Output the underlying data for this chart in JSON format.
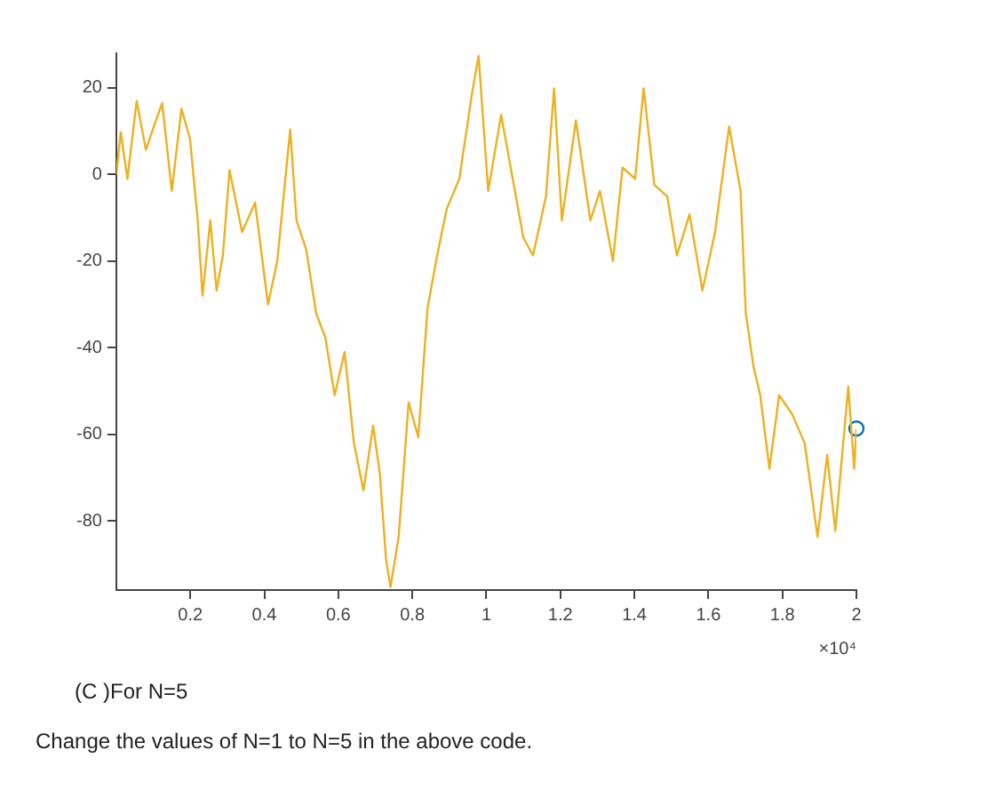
{
  "chart_data": {
    "type": "line",
    "xlabel": "×10⁴",
    "xlim": [
      0,
      2
    ],
    "xticks": [
      0.2,
      0.4,
      0.6,
      0.8,
      1,
      1.2,
      1.4,
      1.6,
      1.8,
      2
    ],
    "ylim": [
      -96,
      28
    ],
    "yticks": [
      -80,
      -60,
      -40,
      -20,
      0,
      20
    ],
    "grid": false,
    "legend": false,
    "series": [
      {
        "color": "#edb120",
        "marker": "none",
        "x": [
          0,
          0.012,
          0.03,
          0.055,
          0.08,
          0.107,
          0.124,
          0.15,
          0.176,
          0.199,
          0.22,
          0.233,
          0.254,
          0.271,
          0.288,
          0.306,
          0.34,
          0.375,
          0.41,
          0.435,
          0.47,
          0.487,
          0.513,
          0.54,
          0.565,
          0.59,
          0.617,
          0.642,
          0.668,
          0.694,
          0.712,
          0.729,
          0.741,
          0.763,
          0.79,
          0.816,
          0.841,
          0.867,
          0.893,
          0.927,
          0.962,
          0.979,
          1.005,
          1.04,
          1.1,
          1.126,
          1.161,
          1.183,
          1.204,
          1.242,
          1.281,
          1.307,
          1.342,
          1.368,
          1.402,
          1.425,
          1.454,
          1.489,
          1.515,
          1.549,
          1.584,
          1.618,
          1.656,
          1.687,
          1.701,
          1.722,
          1.74,
          1.765,
          1.791,
          1.826,
          1.86,
          1.895,
          1.921,
          1.943,
          1.978,
          1.994,
          2
        ],
        "values": [
          0,
          9.8,
          -1,
          17,
          5.7,
          12.5,
          16.5,
          -3.8,
          15.2,
          8.4,
          -10.6,
          -28,
          -10.6,
          -26.8,
          -18.7,
          1,
          -13.3,
          -6.5,
          -30,
          -20,
          10.4,
          -10.6,
          -17.3,
          -32,
          -37.7,
          -51,
          -41,
          -62,
          -73,
          -58,
          -69,
          -89,
          -95.3,
          -83.7,
          -52.6,
          -60.7,
          -30.9,
          -18.7,
          -7.9,
          -1,
          19.2,
          27.4,
          -3.8,
          13.8,
          -14.6,
          -18.7,
          -5.1,
          19.9,
          -10.6,
          12.5,
          -10.6,
          -3.8,
          -20,
          1.6,
          -1,
          19.9,
          -2.4,
          -5.1,
          -18.7,
          -9.2,
          -26.8,
          -13.3,
          11.1,
          -3.8,
          -32,
          -44.4,
          -51,
          -68,
          -51,
          -55.3,
          -62,
          -83.7,
          -64.8,
          -82.3,
          -49,
          -68,
          -58.7
        ]
      },
      {
        "type": "scatter",
        "color": "#0072bd",
        "marker": "circle",
        "x": [
          2
        ],
        "values": [
          -58.7
        ]
      }
    ],
    "annotations": [
      "(C )For N=5",
      "Change the values of N=1 to N=5 in the above code."
    ]
  }
}
